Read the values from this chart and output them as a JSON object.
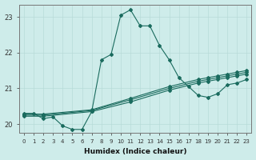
{
  "xlabel": "Humidex (Indice chaleur)",
  "bg_color": "#ceecea",
  "line_color": "#1a6b5e",
  "grid_color": "#b8dbd8",
  "xlim": [
    -0.5,
    23.5
  ],
  "ylim": [
    19.75,
    23.35
  ],
  "yticks": [
    20,
    21,
    22,
    23
  ],
  "xticks": [
    0,
    1,
    2,
    3,
    4,
    5,
    6,
    7,
    8,
    9,
    10,
    11,
    12,
    13,
    14,
    15,
    16,
    17,
    18,
    19,
    20,
    21,
    22,
    23
  ],
  "line1_x": [
    0,
    1,
    2,
    3,
    4,
    5,
    6,
    7,
    8,
    9,
    10,
    11,
    12,
    13,
    14,
    15,
    16,
    17,
    18,
    19,
    20,
    21,
    22,
    23
  ],
  "line1_y": [
    20.3,
    20.3,
    20.15,
    20.2,
    19.95,
    19.85,
    19.85,
    20.35,
    21.8,
    21.95,
    23.05,
    23.2,
    22.75,
    22.75,
    22.2,
    21.8,
    21.3,
    21.05,
    20.8,
    20.75,
    20.85,
    21.1,
    21.15,
    21.25
  ],
  "line2_x": [
    0,
    2,
    7,
    11,
    15,
    18,
    19,
    20,
    21,
    22,
    23
  ],
  "line2_y": [
    20.28,
    20.28,
    20.4,
    20.72,
    21.05,
    21.25,
    21.3,
    21.35,
    21.4,
    21.45,
    21.5
  ],
  "line3_x": [
    0,
    2,
    7,
    11,
    15,
    18,
    19,
    20,
    21,
    22,
    23
  ],
  "line3_y": [
    20.25,
    20.25,
    20.38,
    20.68,
    21.0,
    21.2,
    21.25,
    21.3,
    21.35,
    21.4,
    21.45
  ],
  "line4_x": [
    0,
    2,
    7,
    11,
    15,
    18,
    19,
    20,
    21,
    22,
    23
  ],
  "line4_y": [
    20.22,
    20.22,
    20.35,
    20.62,
    20.95,
    21.15,
    21.2,
    21.25,
    21.3,
    21.35,
    21.4
  ]
}
